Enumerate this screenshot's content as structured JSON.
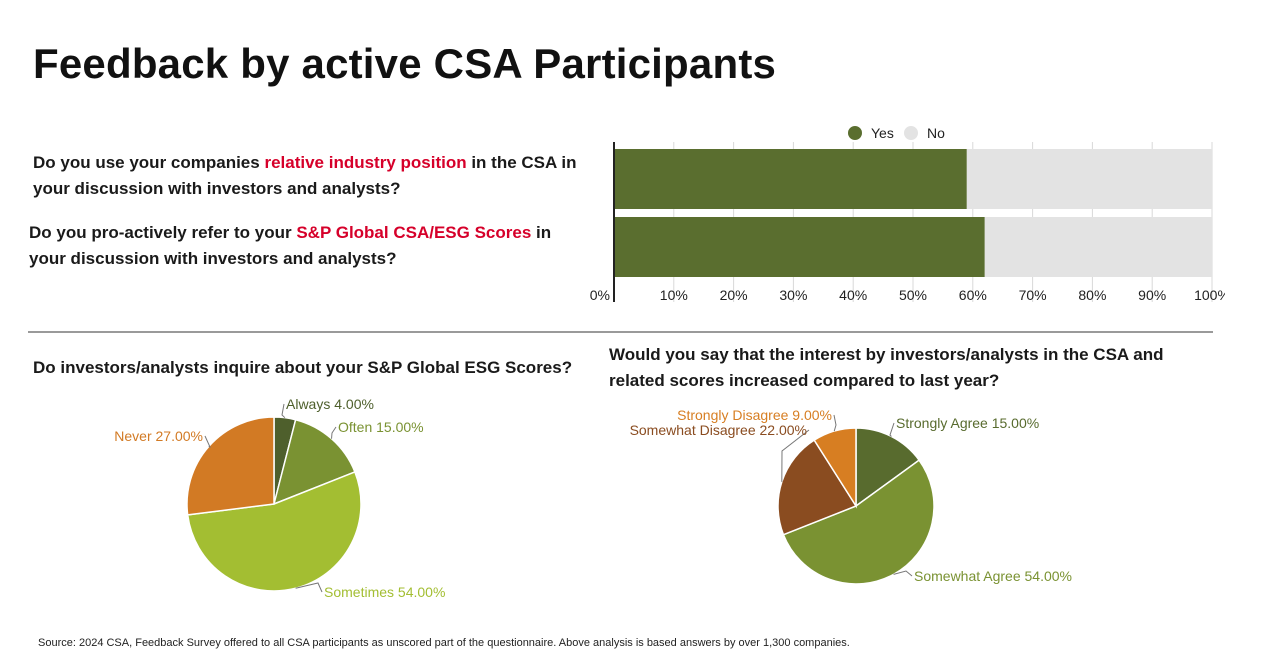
{
  "title": "Feedback by active CSA Participants",
  "questions": {
    "q1": {
      "before": "Do you use your companies ",
      "highlight": "relative industry position",
      "after": " in the CSA in your discussion with investors and analysts?"
    },
    "q2": {
      "before": "Do you pro-actively refer to your ",
      "highlight": "S&P Global CSA/ESG Scores",
      "after": " in your discussion with investors and analysts?"
    },
    "q3": "Do investors/analysts inquire about your S&P Global ESG Scores?",
    "q4": "Would you say that the interest by investors/analysts in the CSA and related scores increased compared to last year?"
  },
  "colors": {
    "highlight": "#d6002a",
    "yes": "#5a6e2f",
    "no": "#e3e3e3"
  },
  "chart_data": [
    {
      "type": "bar",
      "orientation": "horizontal",
      "stacked": true,
      "categories": [
        "Do you use your companies relative industry position in the CSA in your discussion with investors and analysts?",
        "Do you pro-actively refer to your S&P Global CSA/ESG Scores in your discussion with investors and analysts?"
      ],
      "series": [
        {
          "name": "Yes",
          "color": "#5a6e2f",
          "values": [
            59,
            62
          ]
        },
        {
          "name": "No",
          "color": "#e3e3e3",
          "values": [
            41,
            38
          ]
        }
      ],
      "xlim": [
        0,
        100
      ],
      "xticks": [
        "0%",
        "10%",
        "20%",
        "30%",
        "40%",
        "50%",
        "60%",
        "70%",
        "80%",
        "90%",
        "100%"
      ],
      "legend": "top",
      "grid": true
    },
    {
      "type": "pie",
      "title": "Do investors/analysts inquire about your S&P Global ESG Scores?",
      "slices": [
        {
          "label": "Always 4.00%",
          "value": 4,
          "color": "#4e5f2c"
        },
        {
          "label": "Often 15.00%",
          "value": 15,
          "color": "#7a9232"
        },
        {
          "label": "Sometimes 54.00%",
          "value": 54,
          "color": "#a3be32"
        },
        {
          "label": "Never 27.00%",
          "value": 27,
          "color": "#d27a24"
        }
      ]
    },
    {
      "type": "pie",
      "title": "Would you say that the interest by investors/analysts in the CSA and related scores increased compared to last year?",
      "slices": [
        {
          "label": "Strongly Agree 15.00%",
          "value": 15,
          "color": "#586b2e"
        },
        {
          "label": "Somewhat Agree 54.00%",
          "value": 54,
          "color": "#7a9232"
        },
        {
          "label": "Somewhat Disagree 22.00%",
          "value": 22,
          "color": "#8a4c20"
        },
        {
          "label": "Strongly Disagree 9.00%",
          "value": 9,
          "color": "#d77e22"
        }
      ]
    }
  ],
  "source": "Source: 2024 CSA, Feedback Survey offered to all CSA participants as unscored part of the questionnaire. Above analysis is based answers by over 1,300 companies."
}
